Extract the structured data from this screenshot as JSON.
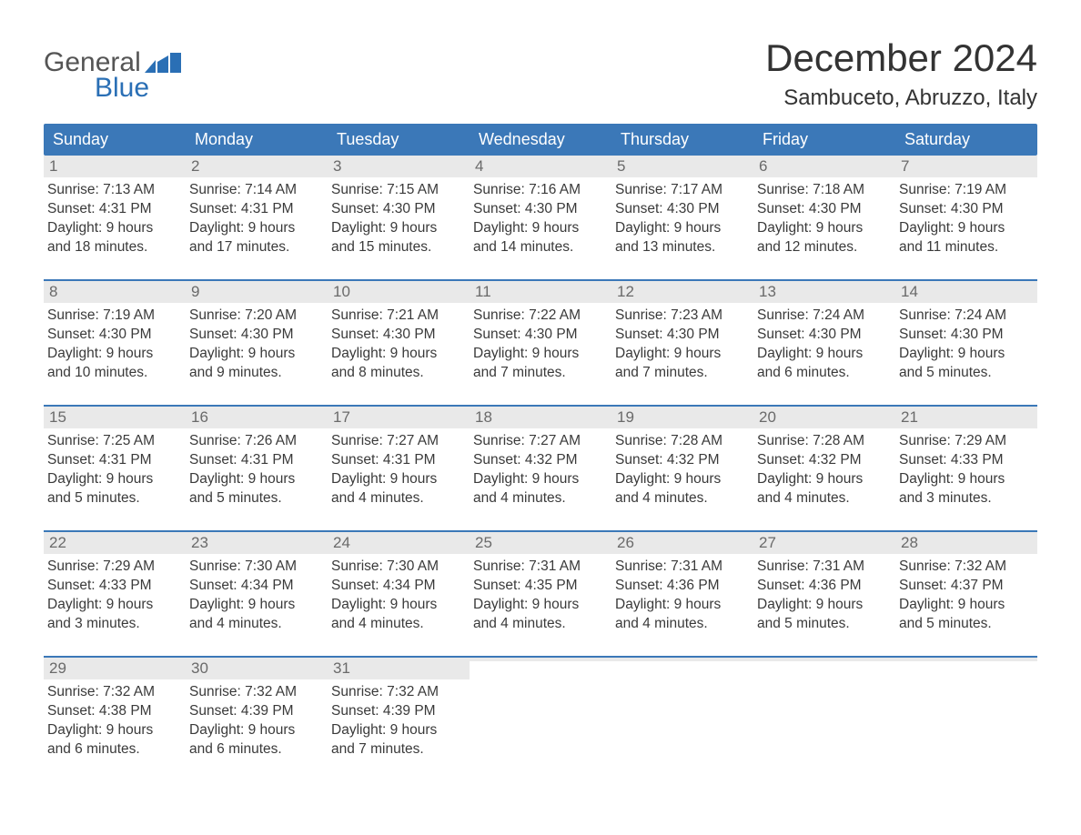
{
  "brand": {
    "word1": "General",
    "word2": "Blue",
    "color_gray": "#555555",
    "color_blue": "#2a6fb5"
  },
  "title": "December 2024",
  "location": "Sambuceto, Abruzzo, Italy",
  "colors": {
    "header_bg": "#3b78b8",
    "header_text": "#ffffff",
    "daynum_bg": "#e9e9e9",
    "daynum_text": "#6a6a6a",
    "body_text": "#3a3a3a",
    "week_border": "#3b78b8",
    "page_bg": "#ffffff"
  },
  "typography": {
    "title_fontsize": 42,
    "location_fontsize": 24,
    "weekday_fontsize": 18,
    "daynum_fontsize": 17,
    "body_fontsize": 15.5,
    "font_family": "Arial, Helvetica, sans-serif"
  },
  "weekdays": [
    "Sunday",
    "Monday",
    "Tuesday",
    "Wednesday",
    "Thursday",
    "Friday",
    "Saturday"
  ],
  "weeks": [
    [
      {
        "n": "1",
        "sunrise": "Sunrise: 7:13 AM",
        "sunset": "Sunset: 4:31 PM",
        "dl1": "Daylight: 9 hours",
        "dl2": "and 18 minutes."
      },
      {
        "n": "2",
        "sunrise": "Sunrise: 7:14 AM",
        "sunset": "Sunset: 4:31 PM",
        "dl1": "Daylight: 9 hours",
        "dl2": "and 17 minutes."
      },
      {
        "n": "3",
        "sunrise": "Sunrise: 7:15 AM",
        "sunset": "Sunset: 4:30 PM",
        "dl1": "Daylight: 9 hours",
        "dl2": "and 15 minutes."
      },
      {
        "n": "4",
        "sunrise": "Sunrise: 7:16 AM",
        "sunset": "Sunset: 4:30 PM",
        "dl1": "Daylight: 9 hours",
        "dl2": "and 14 minutes."
      },
      {
        "n": "5",
        "sunrise": "Sunrise: 7:17 AM",
        "sunset": "Sunset: 4:30 PM",
        "dl1": "Daylight: 9 hours",
        "dl2": "and 13 minutes."
      },
      {
        "n": "6",
        "sunrise": "Sunrise: 7:18 AM",
        "sunset": "Sunset: 4:30 PM",
        "dl1": "Daylight: 9 hours",
        "dl2": "and 12 minutes."
      },
      {
        "n": "7",
        "sunrise": "Sunrise: 7:19 AM",
        "sunset": "Sunset: 4:30 PM",
        "dl1": "Daylight: 9 hours",
        "dl2": "and 11 minutes."
      }
    ],
    [
      {
        "n": "8",
        "sunrise": "Sunrise: 7:19 AM",
        "sunset": "Sunset: 4:30 PM",
        "dl1": "Daylight: 9 hours",
        "dl2": "and 10 minutes."
      },
      {
        "n": "9",
        "sunrise": "Sunrise: 7:20 AM",
        "sunset": "Sunset: 4:30 PM",
        "dl1": "Daylight: 9 hours",
        "dl2": "and 9 minutes."
      },
      {
        "n": "10",
        "sunrise": "Sunrise: 7:21 AM",
        "sunset": "Sunset: 4:30 PM",
        "dl1": "Daylight: 9 hours",
        "dl2": "and 8 minutes."
      },
      {
        "n": "11",
        "sunrise": "Sunrise: 7:22 AM",
        "sunset": "Sunset: 4:30 PM",
        "dl1": "Daylight: 9 hours",
        "dl2": "and 7 minutes."
      },
      {
        "n": "12",
        "sunrise": "Sunrise: 7:23 AM",
        "sunset": "Sunset: 4:30 PM",
        "dl1": "Daylight: 9 hours",
        "dl2": "and 7 minutes."
      },
      {
        "n": "13",
        "sunrise": "Sunrise: 7:24 AM",
        "sunset": "Sunset: 4:30 PM",
        "dl1": "Daylight: 9 hours",
        "dl2": "and 6 minutes."
      },
      {
        "n": "14",
        "sunrise": "Sunrise: 7:24 AM",
        "sunset": "Sunset: 4:30 PM",
        "dl1": "Daylight: 9 hours",
        "dl2": "and 5 minutes."
      }
    ],
    [
      {
        "n": "15",
        "sunrise": "Sunrise: 7:25 AM",
        "sunset": "Sunset: 4:31 PM",
        "dl1": "Daylight: 9 hours",
        "dl2": "and 5 minutes."
      },
      {
        "n": "16",
        "sunrise": "Sunrise: 7:26 AM",
        "sunset": "Sunset: 4:31 PM",
        "dl1": "Daylight: 9 hours",
        "dl2": "and 5 minutes."
      },
      {
        "n": "17",
        "sunrise": "Sunrise: 7:27 AM",
        "sunset": "Sunset: 4:31 PM",
        "dl1": "Daylight: 9 hours",
        "dl2": "and 4 minutes."
      },
      {
        "n": "18",
        "sunrise": "Sunrise: 7:27 AM",
        "sunset": "Sunset: 4:32 PM",
        "dl1": "Daylight: 9 hours",
        "dl2": "and 4 minutes."
      },
      {
        "n": "19",
        "sunrise": "Sunrise: 7:28 AM",
        "sunset": "Sunset: 4:32 PM",
        "dl1": "Daylight: 9 hours",
        "dl2": "and 4 minutes."
      },
      {
        "n": "20",
        "sunrise": "Sunrise: 7:28 AM",
        "sunset": "Sunset: 4:32 PM",
        "dl1": "Daylight: 9 hours",
        "dl2": "and 4 minutes."
      },
      {
        "n": "21",
        "sunrise": "Sunrise: 7:29 AM",
        "sunset": "Sunset: 4:33 PM",
        "dl1": "Daylight: 9 hours",
        "dl2": "and 3 minutes."
      }
    ],
    [
      {
        "n": "22",
        "sunrise": "Sunrise: 7:29 AM",
        "sunset": "Sunset: 4:33 PM",
        "dl1": "Daylight: 9 hours",
        "dl2": "and 3 minutes."
      },
      {
        "n": "23",
        "sunrise": "Sunrise: 7:30 AM",
        "sunset": "Sunset: 4:34 PM",
        "dl1": "Daylight: 9 hours",
        "dl2": "and 4 minutes."
      },
      {
        "n": "24",
        "sunrise": "Sunrise: 7:30 AM",
        "sunset": "Sunset: 4:34 PM",
        "dl1": "Daylight: 9 hours",
        "dl2": "and 4 minutes."
      },
      {
        "n": "25",
        "sunrise": "Sunrise: 7:31 AM",
        "sunset": "Sunset: 4:35 PM",
        "dl1": "Daylight: 9 hours",
        "dl2": "and 4 minutes."
      },
      {
        "n": "26",
        "sunrise": "Sunrise: 7:31 AM",
        "sunset": "Sunset: 4:36 PM",
        "dl1": "Daylight: 9 hours",
        "dl2": "and 4 minutes."
      },
      {
        "n": "27",
        "sunrise": "Sunrise: 7:31 AM",
        "sunset": "Sunset: 4:36 PM",
        "dl1": "Daylight: 9 hours",
        "dl2": "and 5 minutes."
      },
      {
        "n": "28",
        "sunrise": "Sunrise: 7:32 AM",
        "sunset": "Sunset: 4:37 PM",
        "dl1": "Daylight: 9 hours",
        "dl2": "and 5 minutes."
      }
    ],
    [
      {
        "n": "29",
        "sunrise": "Sunrise: 7:32 AM",
        "sunset": "Sunset: 4:38 PM",
        "dl1": "Daylight: 9 hours",
        "dl2": "and 6 minutes."
      },
      {
        "n": "30",
        "sunrise": "Sunrise: 7:32 AM",
        "sunset": "Sunset: 4:39 PM",
        "dl1": "Daylight: 9 hours",
        "dl2": "and 6 minutes."
      },
      {
        "n": "31",
        "sunrise": "Sunrise: 7:32 AM",
        "sunset": "Sunset: 4:39 PM",
        "dl1": "Daylight: 9 hours",
        "dl2": "and 7 minutes."
      },
      {
        "n": "",
        "sunrise": "",
        "sunset": "",
        "dl1": "",
        "dl2": ""
      },
      {
        "n": "",
        "sunrise": "",
        "sunset": "",
        "dl1": "",
        "dl2": ""
      },
      {
        "n": "",
        "sunrise": "",
        "sunset": "",
        "dl1": "",
        "dl2": ""
      },
      {
        "n": "",
        "sunrise": "",
        "sunset": "",
        "dl1": "",
        "dl2": ""
      }
    ]
  ]
}
